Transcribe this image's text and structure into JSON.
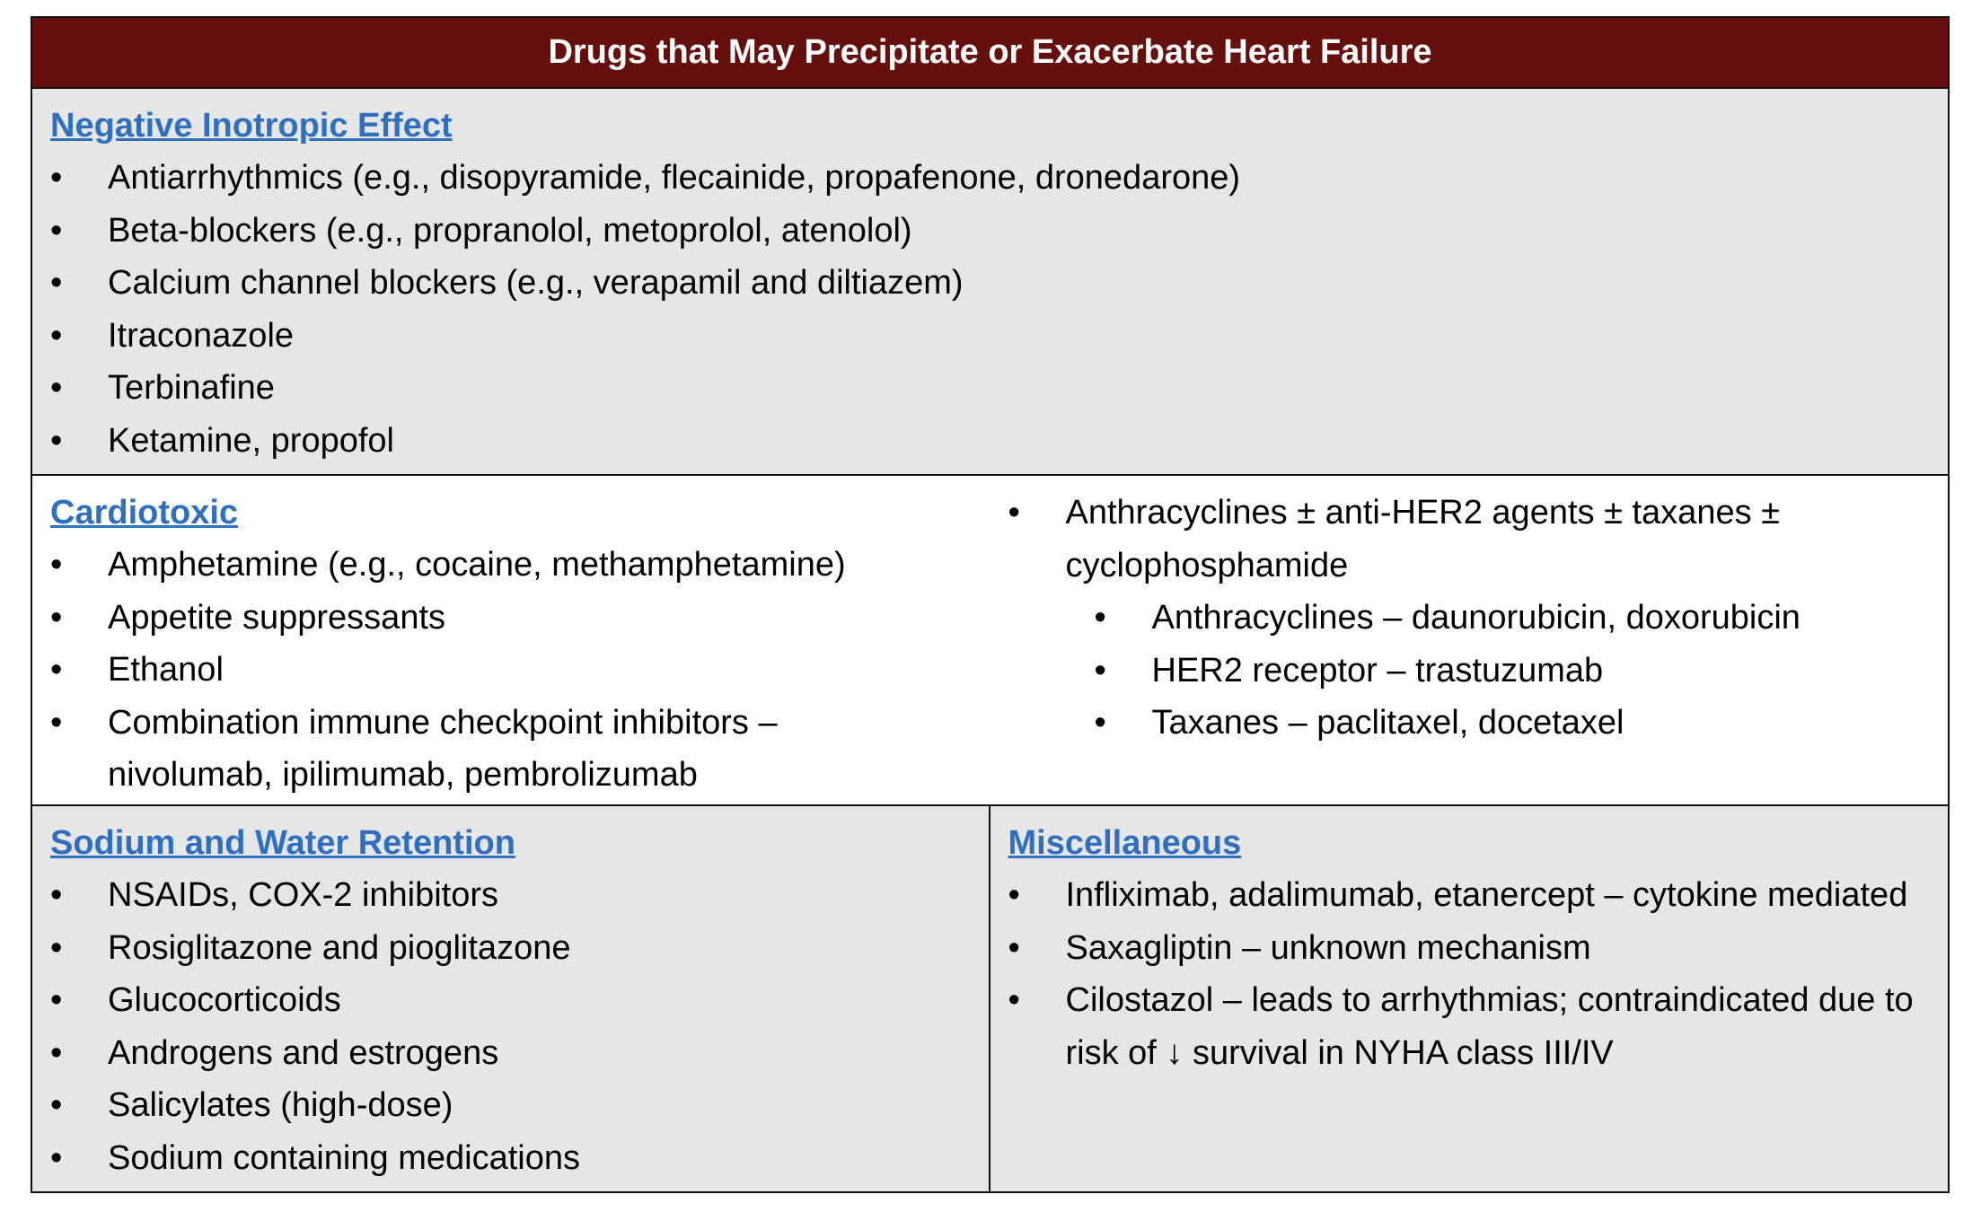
{
  "title": "Drugs that May Precipitate or Exacerbate Heart Failure",
  "negative_inotropic": {
    "heading": "Negative Inotropic Effect",
    "items": [
      "Antiarrhythmics (e.g., disopyramide, flecainide, propafenone, dronedarone)",
      "Beta-blockers (e.g., propranolol, metoprolol, atenolol)",
      "Calcium channel blockers (e.g., verapamil and diltiazem)",
      "Itraconazole",
      "Terbinafine",
      "Ketamine, propofol"
    ]
  },
  "cardiotoxic": {
    "heading": "Cardiotoxic",
    "items": [
      "Amphetamine (e.g., cocaine, methamphetamine)",
      "Appetite suppressants",
      "Ethanol",
      "Combination immune checkpoint inhibitors – nivolumab, ipilimumab, pembrolizumab"
    ],
    "right_item": "Anthracyclines ± anti-HER2 agents ± taxanes ± cyclophosphamide",
    "right_subitems": [
      "Anthracyclines – daunorubicin, doxorubicin",
      "HER2 receptor – trastuzumab",
      "Taxanes – paclitaxel, docetaxel"
    ]
  },
  "sodium_water": {
    "heading": "Sodium and Water Retention",
    "items": [
      "NSAIDs, COX-2 inhibitors",
      "Rosiglitazone and pioglitazone",
      "Glucocorticoids",
      "Androgens and estrogens",
      "Salicylates (high-dose)",
      "Sodium containing medications"
    ]
  },
  "miscellaneous": {
    "heading": "Miscellaneous",
    "items": [
      "Infliximab, adalimumab, etanercept – cytokine mediated",
      "Saxagliptin – unknown mechanism",
      "Cilostazol – leads to arrhythmias; contraindicated due to risk of ↓ survival in NYHA class III/IV"
    ]
  },
  "colors": {
    "header_bg": "#65100c",
    "heading": "#2f6fbf",
    "shade": "#e6e6e6"
  }
}
